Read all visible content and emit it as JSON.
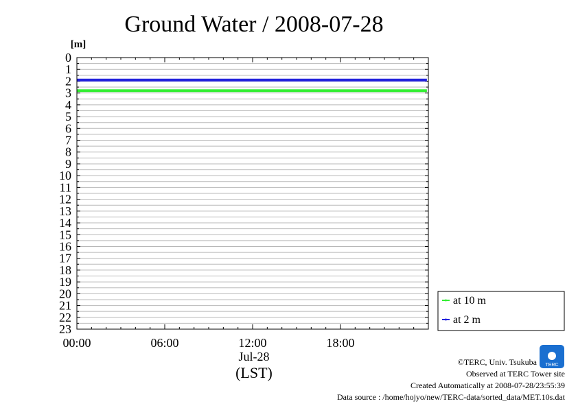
{
  "chart_data": {
    "type": "line",
    "title": "Ground Water / 2008-07-28",
    "ylabel": "[m]",
    "ylim": [
      0,
      23
    ],
    "y_inverted": true,
    "y_ticks": [
      "0",
      "1",
      "2",
      "3",
      "4",
      "5",
      "6",
      "7",
      "8",
      "9",
      "10",
      "11",
      "12",
      "13",
      "14",
      "15",
      "16",
      "17",
      "18",
      "19",
      "20",
      "21",
      "22",
      "23"
    ],
    "x_ticks": [
      "00:00",
      "06:00",
      "12:00",
      "18:00"
    ],
    "x_ticks_hours": [
      0,
      6,
      12,
      18
    ],
    "xlim_hours": [
      0,
      24
    ],
    "x_date": "Jul-28",
    "xlabel": "(LST)",
    "grid": true,
    "legend_position": "bottom-right",
    "series": [
      {
        "name": "at 10 m",
        "color": "#33ee33",
        "x_hours": [
          0,
          23.9
        ],
        "values": [
          2.8,
          2.8
        ]
      },
      {
        "name": "at 2 m",
        "color": "#2222dd",
        "x_hours": [
          0,
          23.9
        ],
        "values": [
          1.9,
          1.9
        ]
      }
    ]
  },
  "logo": {
    "text": "TERC",
    "color": "#1a6fd0"
  },
  "footer": {
    "copyright": "©TERC, Univ. Tsukuba",
    "observed": "Observed at TERC Tower site",
    "created": "Created Automatically at 2008-07-28/23:55:39",
    "source": "Data source : /home/hojyo/new/TERC-data/sorted_data/MET.10s.dat"
  }
}
